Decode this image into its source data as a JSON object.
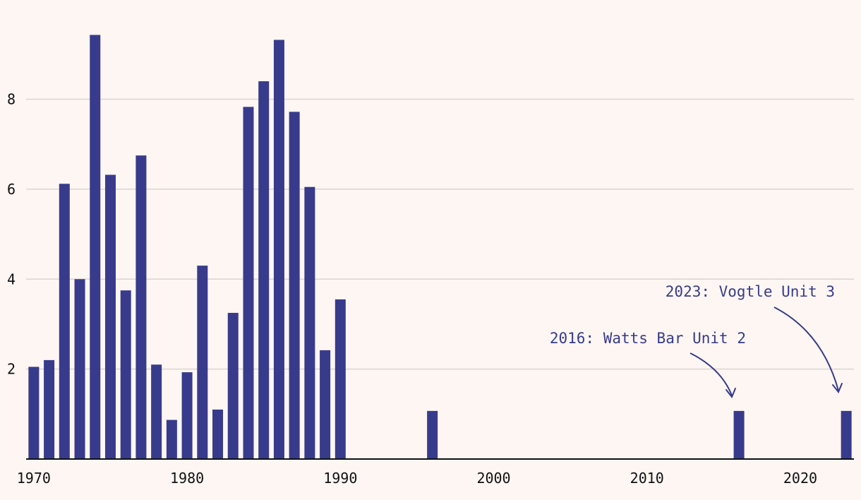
{
  "chart_data": {
    "type": "bar",
    "title": "",
    "xlabel": "",
    "ylabel": "",
    "xlim": [
      1969.5,
      2023.5
    ],
    "ylim": [
      0,
      9.5
    ],
    "grid": true,
    "bar_color": "#383b8c",
    "x_ticks": [
      1970,
      1980,
      1990,
      2000,
      2010,
      2020
    ],
    "y_ticks": [
      2,
      4,
      6,
      8
    ],
    "x": [
      1970,
      1971,
      1972,
      1973,
      1974,
      1975,
      1976,
      1977,
      1978,
      1979,
      1980,
      1981,
      1982,
      1983,
      1984,
      1985,
      1986,
      1987,
      1988,
      1989,
      1990,
      1996,
      2016,
      2023
    ],
    "values": [
      2.05,
      2.2,
      6.12,
      4.0,
      9.43,
      6.32,
      3.75,
      6.75,
      2.1,
      0.87,
      1.93,
      4.3,
      1.1,
      3.25,
      7.83,
      8.4,
      9.32,
      7.72,
      6.05,
      2.42,
      3.55,
      1.07,
      1.07,
      1.07
    ],
    "annotations": [
      {
        "text": "2016: Watts Bar Unit 2",
        "year": 2016
      },
      {
        "text": "2023: Vogtle Unit 3",
        "year": 2023
      }
    ]
  }
}
